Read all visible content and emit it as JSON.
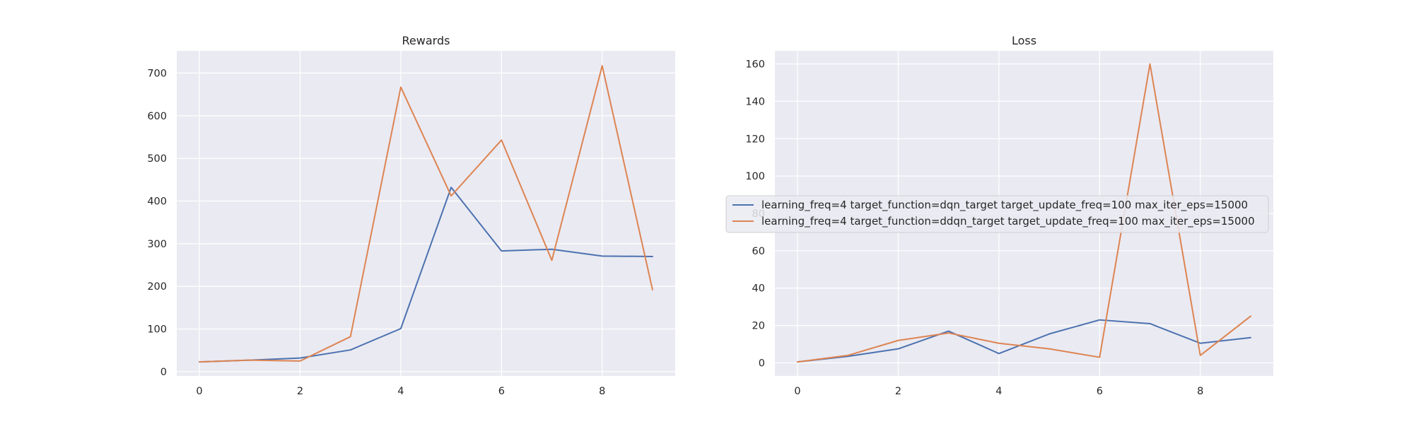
{
  "chart_data": [
    {
      "type": "line",
      "title": "Rewards",
      "xlabel": "",
      "ylabel": "",
      "x": [
        0,
        1,
        2,
        3,
        4,
        5,
        6,
        7,
        8,
        9
      ],
      "xlim": [
        -0.45,
        9.45
      ],
      "ylim": [
        -10,
        752
      ],
      "xticks": [
        0,
        2,
        4,
        6,
        8
      ],
      "yticks": [
        0,
        100,
        200,
        300,
        400,
        500,
        600,
        700
      ],
      "grid": true,
      "series": [
        {
          "color": "#4c72b0",
          "values": [
            23,
            27,
            32,
            51,
            101,
            432,
            283,
            287,
            271,
            270
          ]
        },
        {
          "color": "#dd8452",
          "values": [
            23,
            27,
            25,
            82,
            667,
            412,
            543,
            261,
            717,
            192
          ]
        }
      ]
    },
    {
      "type": "line",
      "title": "Loss",
      "xlabel": "",
      "ylabel": "",
      "x": [
        0,
        1,
        2,
        3,
        4,
        5,
        6,
        7,
        8,
        9
      ],
      "xlim": [
        -0.45,
        9.45
      ],
      "ylim": [
        -7,
        167
      ],
      "xticks": [
        0,
        2,
        4,
        6,
        8
      ],
      "yticks": [
        0,
        20,
        40,
        60,
        80,
        100,
        120,
        140,
        160
      ],
      "grid": true,
      "legend": {
        "placement": "center",
        "entries": [
          {
            "label": "learning_freq=4 target_function=dqn_target target_update_freq=100 max_iter_eps=15000",
            "color": "#4c72b0"
          },
          {
            "label": "learning_freq=4 target_function=ddqn_target target_update_freq=100 max_iter_eps=15000",
            "color": "#dd8452"
          }
        ]
      },
      "series": [
        {
          "name": "learning_freq=4 target_function=dqn_target target_update_freq=100 max_iter_eps=15000",
          "color": "#4c72b0",
          "values": [
            0.5,
            3.5,
            7.5,
            17,
            5,
            15.5,
            23,
            21,
            10.5,
            13.5
          ]
        },
        {
          "name": "learning_freq=4 target_function=ddqn_target target_update_freq=100 max_iter_eps=15000",
          "color": "#dd8452",
          "values": [
            0.5,
            4,
            12,
            16,
            10.5,
            7.5,
            3,
            160,
            4,
            25
          ]
        }
      ]
    }
  ],
  "style": {
    "axes_bg": "#eaeaf2",
    "grid_color": "#ffffff",
    "text_color": "#262626"
  }
}
